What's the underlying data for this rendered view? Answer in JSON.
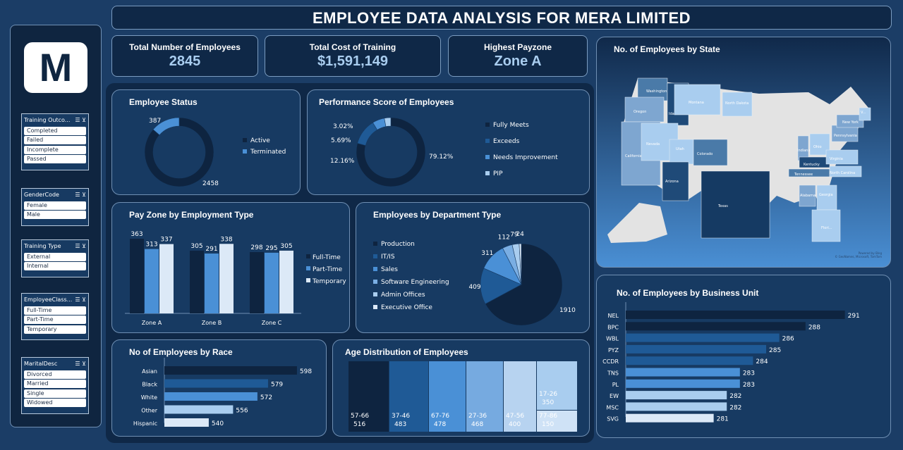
{
  "title": "EMPLOYEE DATA ANALYSIS FOR MERA LIMITED",
  "logo": "M",
  "slicers": [
    {
      "title": "Training Outco...",
      "items": [
        "Completed",
        "Failed",
        "Incomplete",
        "Passed"
      ]
    },
    {
      "title": "GenderCode",
      "items": [
        "Female",
        "Male"
      ]
    },
    {
      "title": "Training Type",
      "items": [
        "External",
        "Internal"
      ]
    },
    {
      "title": "EmployeeClass...",
      "items": [
        "Full-Time",
        "Part-Time",
        "Temporary"
      ]
    },
    {
      "title": "MaritalDesc",
      "items": [
        "Divorced",
        "Married",
        "Single",
        "Widowed"
      ]
    }
  ],
  "icons": {
    "multi_select": "multi-select-icon",
    "clear_filter": "clear-filter-icon"
  },
  "kpis": [
    {
      "label": "Total Number of Employees",
      "value": "2845"
    },
    {
      "label": "Total Cost of Training",
      "value": "$1,591,149"
    },
    {
      "label": "Highest Payzone",
      "value": "Zone A"
    }
  ],
  "colors": {
    "c1": "#0e2440",
    "c2": "#1f5a96",
    "c3": "#4a90d6",
    "c4": "#a9cdef",
    "c5": "#dce9f7"
  },
  "chart_data": [
    {
      "id": "status",
      "type": "pie",
      "title": "Employee Status",
      "categories": [
        "Active",
        "Terminated"
      ],
      "values": [
        2458,
        387
      ]
    },
    {
      "id": "perf",
      "type": "pie",
      "title": "Performance Score of Employees",
      "categories": [
        "Fully Meets",
        "Exceeds",
        "Needs Improvement",
        "PIP"
      ],
      "values": [
        79.12,
        12.16,
        5.69,
        3.02
      ],
      "labels": [
        "79.12%",
        "12.16%",
        "5.69%",
        "3.02%"
      ]
    },
    {
      "id": "payzone",
      "type": "bar",
      "title": "Pay Zone by Employment Type",
      "categories": [
        "Zone A",
        "Zone B",
        "Zone C"
      ],
      "series": [
        {
          "name": "Full-Time",
          "values": [
            363,
            305,
            298
          ]
        },
        {
          "name": "Part-Time",
          "values": [
            313,
            291,
            295
          ]
        },
        {
          "name": "Temporary",
          "values": [
            337,
            338,
            305
          ]
        }
      ]
    },
    {
      "id": "dept",
      "type": "pie",
      "title": "Employees by Department Type",
      "categories": [
        "Production",
        "IT/IS",
        "Sales",
        "Software Engineering",
        "Admin Offices",
        "Executive Office"
      ],
      "values": [
        1910,
        409,
        311,
        112,
        79,
        24
      ]
    },
    {
      "id": "race",
      "type": "bar",
      "orientation": "horizontal",
      "title": "No of Employees by Race",
      "categories": [
        "Asian",
        "Black",
        "White",
        "Other",
        "Hispanic"
      ],
      "values": [
        598,
        579,
        572,
        556,
        540
      ]
    },
    {
      "id": "age",
      "type": "heatmap",
      "title": "Age Distribution of Employees",
      "categories": [
        "57-66",
        "37-46",
        "67-76",
        "27-36",
        "47-56",
        "17-26",
        "77-86"
      ],
      "values": [
        516,
        483,
        478,
        468,
        400,
        350,
        150
      ]
    },
    {
      "id": "bu",
      "type": "bar",
      "orientation": "horizontal",
      "title": "No. of Employees by Business Unit",
      "categories": [
        "NEL",
        "BPC",
        "WBL",
        "PYZ",
        "CCDR",
        "TNS",
        "PL",
        "EW",
        "MSC",
        "SVG"
      ],
      "values": [
        291,
        288,
        286,
        285,
        284,
        283,
        283,
        282,
        282,
        281
      ]
    }
  ],
  "map": {
    "title": "No. of Employees by State",
    "states": [
      "Washington",
      "Oregon",
      "Idaho",
      "Montana",
      "North Dakota",
      "California",
      "Nevada",
      "Utah",
      "Colorado",
      "Arizona",
      "Texas",
      "Indiana",
      "Ohio",
      "Kentucky",
      "Tennessee",
      "Alabama",
      "Georgia",
      "Florida",
      "Virginia",
      "North Carolina",
      "Pennsylvania",
      "New York",
      "V..."
    ],
    "florida_label": "Flori...",
    "credit1": "Powered by Bing",
    "credit2": "© GeoNames, Microsoft, TomTom"
  }
}
